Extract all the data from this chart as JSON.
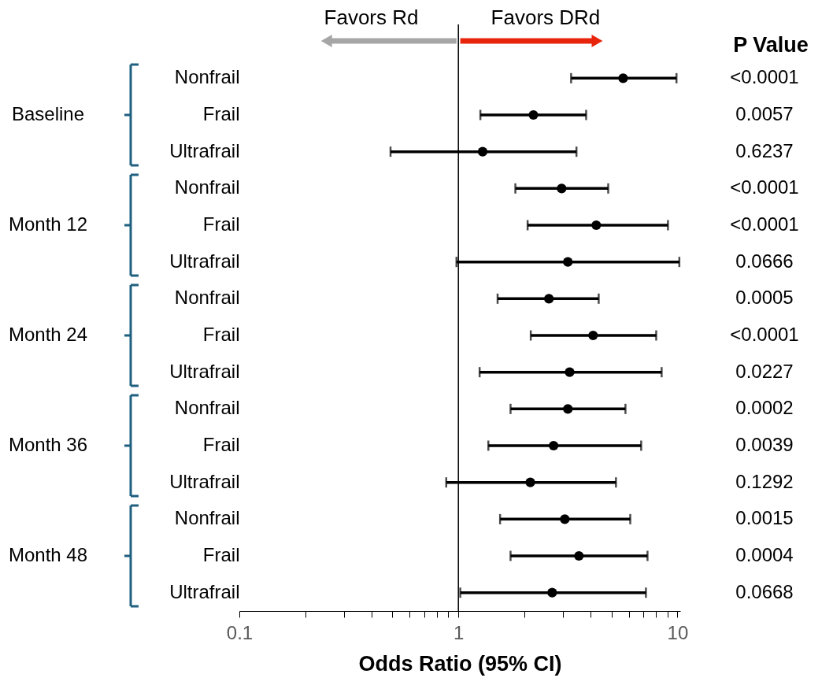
{
  "chart_data": {
    "type": "scatter",
    "orientation": "horizontal",
    "xlabel": "Odds Ratio (95% CI)",
    "categories": [
      "Nonfrail",
      "Frail",
      "Ultrafrail",
      "Nonfrail",
      "Frail",
      "Ultrafrail",
      "Nonfrail",
      "Frail",
      "Ultrafrail",
      "Nonfrail",
      "Frail",
      "Ultrafrail",
      "Nonfrail",
      "Frail",
      "Ultrafrail"
    ],
    "series": [
      {
        "color": "#000000",
        "values": [
          5.65,
          2.2,
          1.29,
          2.96,
          4.26,
          3.16,
          2.59,
          4.12,
          3.22,
          3.16,
          2.72,
          2.13,
          3.06,
          3.55,
          2.68
        ],
        "errors": [
          [
            3.27,
            9.9
          ],
          [
            1.26,
            3.83
          ],
          [
            0.49,
            3.46
          ],
          [
            1.82,
            4.83
          ],
          [
            2.07,
            9.05
          ],
          [
            0.98,
            10.2
          ],
          [
            1.51,
            4.37
          ],
          [
            2.14,
            8.0
          ],
          [
            1.25,
            8.47
          ],
          [
            1.73,
            5.79
          ],
          [
            1.37,
            6.83
          ],
          [
            0.88,
            5.24
          ],
          [
            1.55,
            6.09
          ],
          [
            1.73,
            7.3
          ],
          [
            1.02,
            7.18
          ]
        ]
      }
    ],
    "marker": "circle",
    "log": "x",
    "xlim": [
      0.1,
      10.3
    ],
    "xticks": [
      0.1,
      {
        "value": 0.2,
        "label": null
      },
      {
        "value": 0.3,
        "label": null
      },
      {
        "value": 0.4,
        "label": null
      },
      {
        "value": 0.5,
        "label": null
      },
      {
        "value": 0.6,
        "label": null
      },
      {
        "value": 0.7,
        "label": null
      },
      {
        "value": 0.8,
        "label": null
      },
      {
        "value": 0.9,
        "label": null
      },
      1,
      {
        "value": 2,
        "label": null
      },
      {
        "value": 3,
        "label": null
      },
      {
        "value": 4,
        "label": null
      },
      {
        "value": 5,
        "label": null
      },
      {
        "value": 6,
        "label": null
      },
      {
        "value": 7,
        "label": null
      },
      {
        "value": 8,
        "label": null
      },
      {
        "value": 9,
        "label": null
      },
      10
    ],
    "ref_lines": [
      {
        "axis": "x",
        "value": 1,
        "color": "#000000"
      }
    ],
    "annotations": [
      "Favors Rd",
      "Favors DRd",
      "P Value",
      "Baseline",
      "Month 12",
      "Month 24",
      "Month 36",
      "Month 48",
      "<0.0001",
      "0.0057",
      "0.6237",
      "<0.0001",
      "<0.0001",
      "0.0666",
      "0.0005",
      "<0.0001",
      "0.0227",
      "0.0002",
      "0.0039",
      "0.1292",
      "0.0015",
      "0.0004",
      "0.0668"
    ],
    "grid": false
  }
}
